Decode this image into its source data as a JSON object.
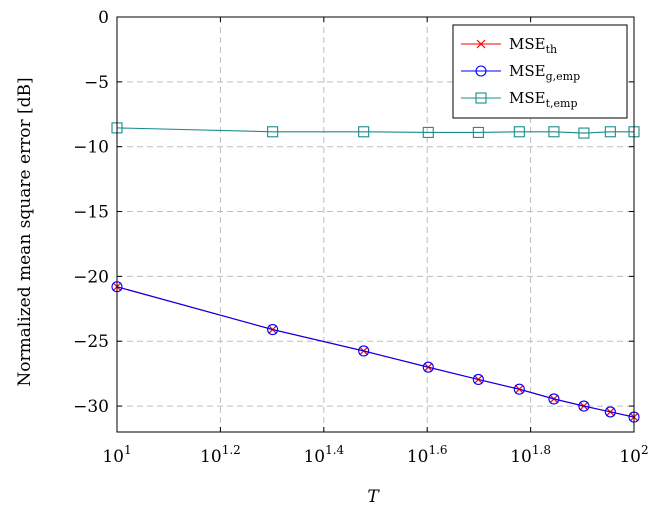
{
  "chart_data": {
    "type": "line",
    "xlabel": "T",
    "ylabel": "Normalized mean square error [dB]",
    "x_scale": "log10",
    "xlim": [
      10,
      100
    ],
    "ylim": [
      -32,
      0
    ],
    "grid": true,
    "legend_position": "top-right",
    "x_ticks": [
      {
        "value": 10,
        "base": "10",
        "exp": "1"
      },
      {
        "value": 15.85,
        "base": "10",
        "exp": "1.2"
      },
      {
        "value": 25.12,
        "base": "10",
        "exp": "1.4"
      },
      {
        "value": 39.81,
        "base": "10",
        "exp": "1.6"
      },
      {
        "value": 63.1,
        "base": "10",
        "exp": "1.8"
      },
      {
        "value": 100,
        "base": "10",
        "exp": "2"
      }
    ],
    "y_ticks": [
      {
        "value": 0,
        "label": "0"
      },
      {
        "value": -5,
        "label": "−5"
      },
      {
        "value": -10,
        "label": "−10"
      },
      {
        "value": -15,
        "label": "−15"
      },
      {
        "value": -20,
        "label": "−20"
      },
      {
        "value": -25,
        "label": "−25"
      },
      {
        "value": -30,
        "label": "−30"
      }
    ],
    "x": [
      10,
      20,
      30,
      40,
      50,
      60,
      70,
      80,
      90,
      100
    ],
    "series": [
      {
        "name": "MSE_th",
        "label_main": "MSE",
        "label_sub": "th",
        "color": "#ff0000",
        "marker": "x",
        "values": [
          -20.8,
          -24.1,
          -25.75,
          -27.0,
          -27.95,
          -28.7,
          -29.45,
          -30.0,
          -30.45,
          -30.85
        ]
      },
      {
        "name": "MSE_g,emp",
        "label_main": "MSE",
        "label_sub": "g,emp",
        "color": "#0000ff",
        "marker": "circle",
        "values": [
          -20.8,
          -24.1,
          -25.75,
          -27.0,
          -27.95,
          -28.7,
          -29.45,
          -30.0,
          -30.45,
          -30.85
        ]
      },
      {
        "name": "MSE_t,emp",
        "label_main": "MSE",
        "label_sub": "t,emp",
        "color": "#1a8c8c",
        "marker": "square",
        "values": [
          -8.55,
          -8.85,
          -8.85,
          -8.9,
          -8.9,
          -8.85,
          -8.85,
          -8.95,
          -8.85,
          -8.85
        ]
      }
    ]
  }
}
